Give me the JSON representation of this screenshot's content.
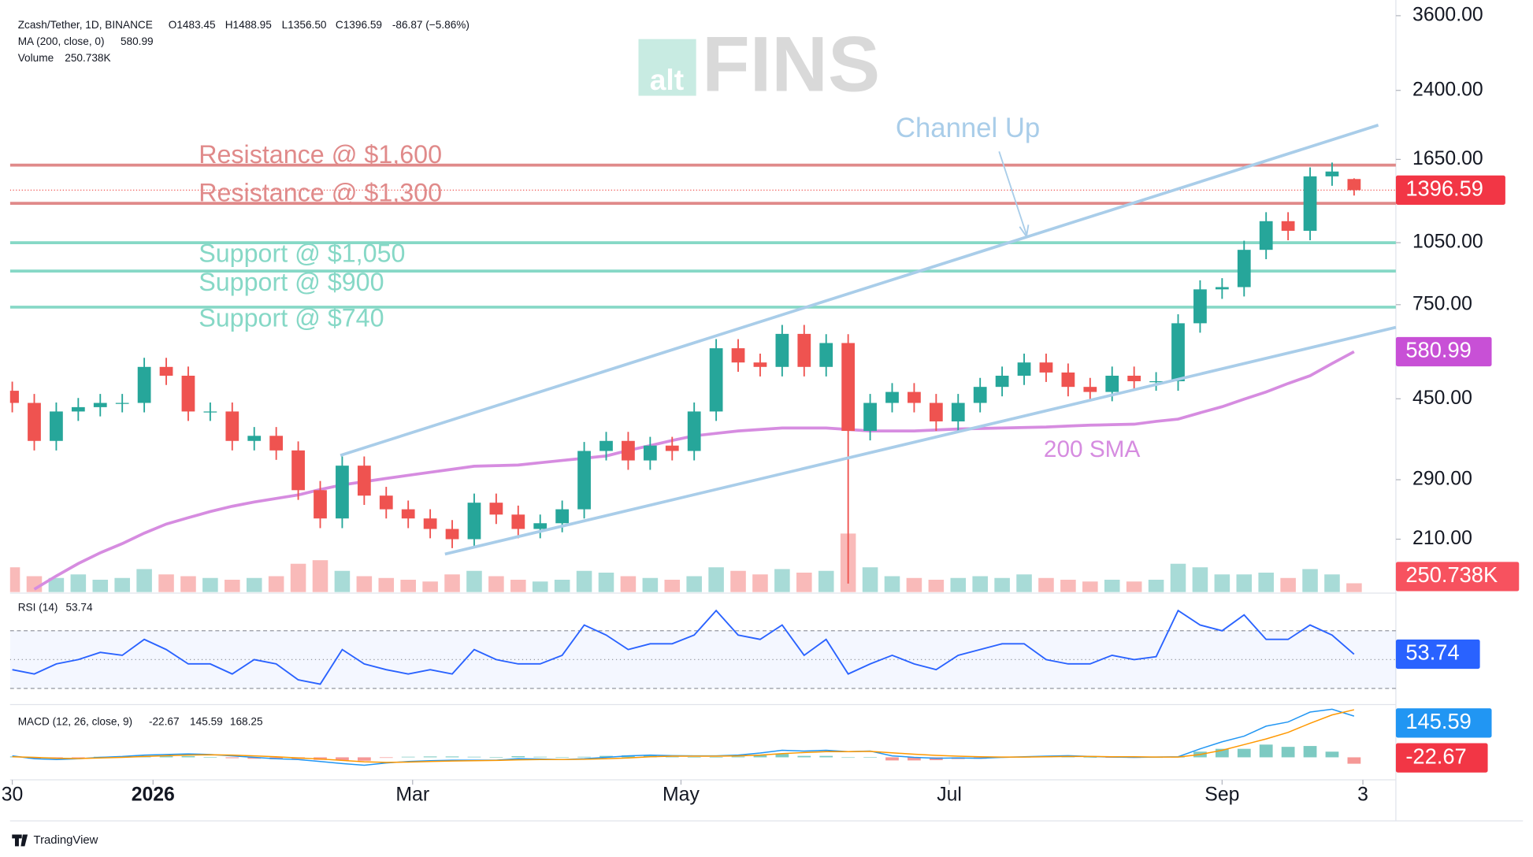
{
  "chart_data": {
    "type": "candlestick",
    "legend": {
      "symbol": "Zcash/Tether, 1D, BINANCE",
      "open": "O1483.45",
      "high": "H1488.95",
      "low": "L1356.50",
      "close": "C1396.59",
      "change": "-86.87 (−5.86%)",
      "ma": "MA (200, close, 0)",
      "volume": "Volume",
      "volume_value": "250.738K",
      "rsi": "RSI (14)",
      "macd": "MACD (12, 26, close, 9)"
    },
    "watermark": [
      "alt",
      "FINS"
    ],
    "footer": "TradingView",
    "up_color": "#26a69a",
    "down_color": "#ef5350",
    "sma_color": "#d68ce0",
    "rsi_color": "#2962ff",
    "macd_color": "#2196f3",
    "signal_color": "#ff9800",
    "xlim": [
      -0.1,
      62.9
    ],
    "xticks": [
      {
        "value": 0,
        "label": "30"
      },
      {
        "value": 6.4,
        "label": "2026"
      },
      {
        "value": 18.2,
        "label": "Mar"
      },
      {
        "value": 30.4,
        "label": "May"
      },
      {
        "value": 42.6,
        "label": "Jul"
      },
      {
        "value": 55,
        "label": "Sep"
      },
      {
        "value": 61.4,
        "label": "3"
      }
    ],
    "ylim": [
      157.5,
      3920
    ],
    "log_scale": true,
    "yticks": [
      {
        "value": 3600,
        "label": "3600.00"
      },
      {
        "value": 2400,
        "label": "2400.00"
      },
      {
        "value": 1650,
        "label": "1650.00"
      },
      {
        "value": 1050,
        "label": "1050.00"
      },
      {
        "value": 750,
        "label": "750.00"
      },
      {
        "value": 450,
        "label": "450.00"
      },
      {
        "value": 290,
        "label": "290.00"
      },
      {
        "value": 210,
        "label": "210.00"
      }
    ],
    "open": [
      470,
      440,
      358,
      420,
      430,
      440,
      440,
      535,
      510,
      420,
      420,
      358,
      368,
      340,
      274,
      235,
      313,
      266,
      247,
      235,
      222,
      210,
      256,
      240,
      222,
      229,
      247,
      339,
      358,
      322,
      349,
      339,
      420,
      592,
      548,
      535,
      640,
      535,
      609,
      378,
      440,
      467,
      440,
      398,
      440,
      480,
      510,
      548,
      519,
      480,
      467,
      510,
      495,
      495,
      678,
      815,
      825,
      1010,
      1180,
      1120,
      1505,
      1483.45
    ],
    "high": [
      494,
      462,
      441,
      452,
      462,
      462,
      562,
      562,
      536,
      441,
      441,
      386,
      386,
      357,
      288,
      329,
      329,
      279,
      259,
      247,
      233,
      269,
      269,
      252,
      240,
      259,
      356,
      376,
      376,
      366,
      366,
      441,
      622,
      622,
      575,
      672,
      672,
      639,
      639,
      462,
      490,
      490,
      462,
      462,
      504,
      536,
      575,
      575,
      545,
      504,
      536,
      536,
      520,
      712,
      856,
      866,
      1061,
      1239,
      1239,
      1580,
      1622,
      1488.95
    ],
    "low": [
      418,
      340,
      340,
      399,
      409,
      418,
      418,
      485,
      399,
      399,
      340,
      340,
      323,
      260,
      223,
      223,
      253,
      235,
      223,
      211,
      200,
      200,
      228,
      211,
      211,
      218,
      235,
      322,
      306,
      306,
      322,
      322,
      399,
      521,
      508,
      508,
      508,
      508,
      165,
      359,
      418,
      418,
      378,
      378,
      418,
      456,
      485,
      493,
      456,
      444,
      444,
      470,
      470,
      470,
      644,
      774,
      784,
      960,
      1064,
      1064,
      1430,
      1356.5
    ],
    "close": [
      440,
      358,
      420,
      430,
      440,
      440,
      535,
      510,
      420,
      420,
      358,
      368,
      340,
      274,
      235,
      313,
      266,
      247,
      235,
      222,
      210,
      256,
      240,
      222,
      229,
      247,
      339,
      358,
      322,
      349,
      339,
      420,
      592,
      548,
      535,
      640,
      535,
      609,
      378,
      440,
      467,
      440,
      398,
      440,
      480,
      510,
      548,
      519,
      480,
      467,
      510,
      495,
      495,
      678,
      815,
      825,
      1010,
      1180,
      1120,
      1505,
      1545,
      1396.59
    ],
    "volume": [
      700,
      450,
      400,
      500,
      350,
      400,
      650,
      500,
      450,
      400,
      350,
      400,
      450,
      800,
      900,
      600,
      450,
      400,
      350,
      300,
      500,
      600,
      450,
      350,
      300,
      350,
      600,
      550,
      450,
      400,
      350,
      450,
      700,
      600,
      500,
      650,
      550,
      600,
      1650,
      700,
      450,
      400,
      350,
      400,
      450,
      400,
      500,
      400,
      350,
      300,
      350,
      300,
      350,
      800,
      700,
      500,
      500,
      550,
      400,
      650,
      500,
      250.738
    ],
    "volume_lim": [
      0,
      1650
    ],
    "sma": [
      null,
      160,
      172,
      184,
      195,
      205,
      217,
      228,
      236,
      244,
      251,
      257,
      262,
      267,
      275,
      282,
      287,
      292,
      297,
      302,
      307,
      312,
      313,
      314,
      318,
      322,
      326,
      330,
      340,
      349,
      359,
      368,
      373,
      378,
      381,
      384,
      384,
      384,
      381,
      378,
      378,
      378,
      380,
      382,
      383,
      384,
      385,
      386,
      388,
      390,
      391,
      392,
      398,
      403,
      417,
      431,
      449,
      467,
      489,
      510,
      545,
      580.99
    ],
    "levels": [
      {
        "label": "Resistance @ $1,600",
        "value": 1600,
        "kind": "resistance",
        "color": "#e08a8a"
      },
      {
        "label": "Resistance @ $1,300",
        "value": 1300,
        "kind": "resistance",
        "color": "#e08a8a"
      },
      {
        "label": "Support @ $1,050",
        "value": 1050,
        "kind": "support",
        "color": "#86d8c6"
      },
      {
        "label": "Support @ $900",
        "value": 900,
        "kind": "support",
        "color": "#86d8c6"
      },
      {
        "label": "Support @ $740",
        "value": 740,
        "kind": "support",
        "color": "#86d8c6"
      }
    ],
    "annotations": [
      "Channel Up",
      "200 SMA"
    ],
    "rsi": [
      43,
      40,
      47,
      50,
      55,
      53,
      64,
      57,
      47,
      47,
      40,
      50,
      47,
      36,
      33,
      57,
      47,
      43,
      40,
      43,
      40,
      57,
      50,
      47,
      47,
      53,
      74,
      67,
      57,
      61,
      61,
      67,
      84,
      67,
      64,
      74,
      53,
      64,
      40,
      47,
      53,
      47,
      43,
      53,
      57,
      61,
      61,
      50,
      47,
      47,
      53,
      50,
      52,
      84,
      74,
      70,
      81,
      64,
      64,
      74,
      67,
      53.74
    ],
    "rsi_lim": [
      19.5,
      95.4
    ],
    "rsi_levels": [
      70,
      50,
      30
    ],
    "macd": [
      5,
      -5,
      -8,
      -5,
      0,
      3,
      8,
      10,
      12,
      10,
      5,
      0,
      -5,
      -8,
      -15,
      -22,
      -28,
      -20,
      -15,
      -12,
      -10,
      -10,
      -10,
      -5,
      -6,
      -8,
      -5,
      0,
      5,
      8,
      6,
      5,
      5,
      8,
      15,
      25,
      22,
      25,
      20,
      22,
      5,
      0,
      -3,
      -2,
      -3,
      0,
      2,
      4,
      6,
      3,
      1,
      0,
      1,
      2,
      30,
      55,
      75,
      110,
      125,
      160,
      170,
      145.59
    ],
    "signal": [
      2,
      0,
      -3,
      -4,
      -2,
      0,
      3,
      6,
      8,
      9,
      8,
      5,
      2,
      -2,
      -6,
      -11,
      -16,
      -18,
      -17,
      -15,
      -13,
      -12,
      -11,
      -9,
      -8,
      -8,
      -7,
      -5,
      -2,
      2,
      4,
      4,
      4,
      5,
      8,
      13,
      17,
      20,
      20,
      21,
      16,
      11,
      7,
      4,
      2,
      1,
      1,
      2,
      3,
      3,
      2,
      2,
      1,
      1,
      10,
      25,
      45,
      65,
      88,
      120,
      150,
      168.25
    ],
    "histogram": [
      3,
      -5,
      -5,
      -1,
      2,
      3,
      5,
      4,
      4,
      1,
      -3,
      -5,
      -7,
      -6,
      -9,
      -11,
      -12,
      -2,
      2,
      3,
      3,
      2,
      1,
      4,
      2,
      0,
      2,
      5,
      7,
      6,
      2,
      1,
      1,
      3,
      7,
      12,
      5,
      5,
      0,
      1,
      -11,
      -11,
      -10,
      -6,
      -5,
      -1,
      1,
      2,
      3,
      0,
      -1,
      -2,
      0,
      1,
      20,
      30,
      30,
      45,
      37,
      40,
      20,
      -22.67
    ],
    "macd_lim": [
      -76,
      183
    ]
  }
}
